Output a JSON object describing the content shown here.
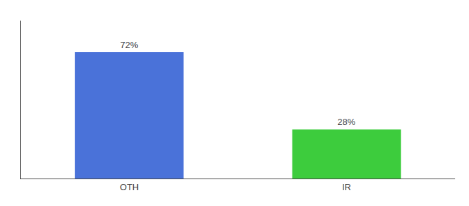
{
  "chart_data": {
    "type": "bar",
    "categories": [
      "OTH",
      "IR"
    ],
    "values": [
      72,
      28
    ],
    "value_labels": [
      "72%",
      "28%"
    ],
    "data_labels": true,
    "colors": [
      "#4a72d9",
      "#3dcc3d"
    ],
    "ylim": [
      0,
      90
    ],
    "yticks": [],
    "grid": false,
    "tick_labels": "x"
  }
}
